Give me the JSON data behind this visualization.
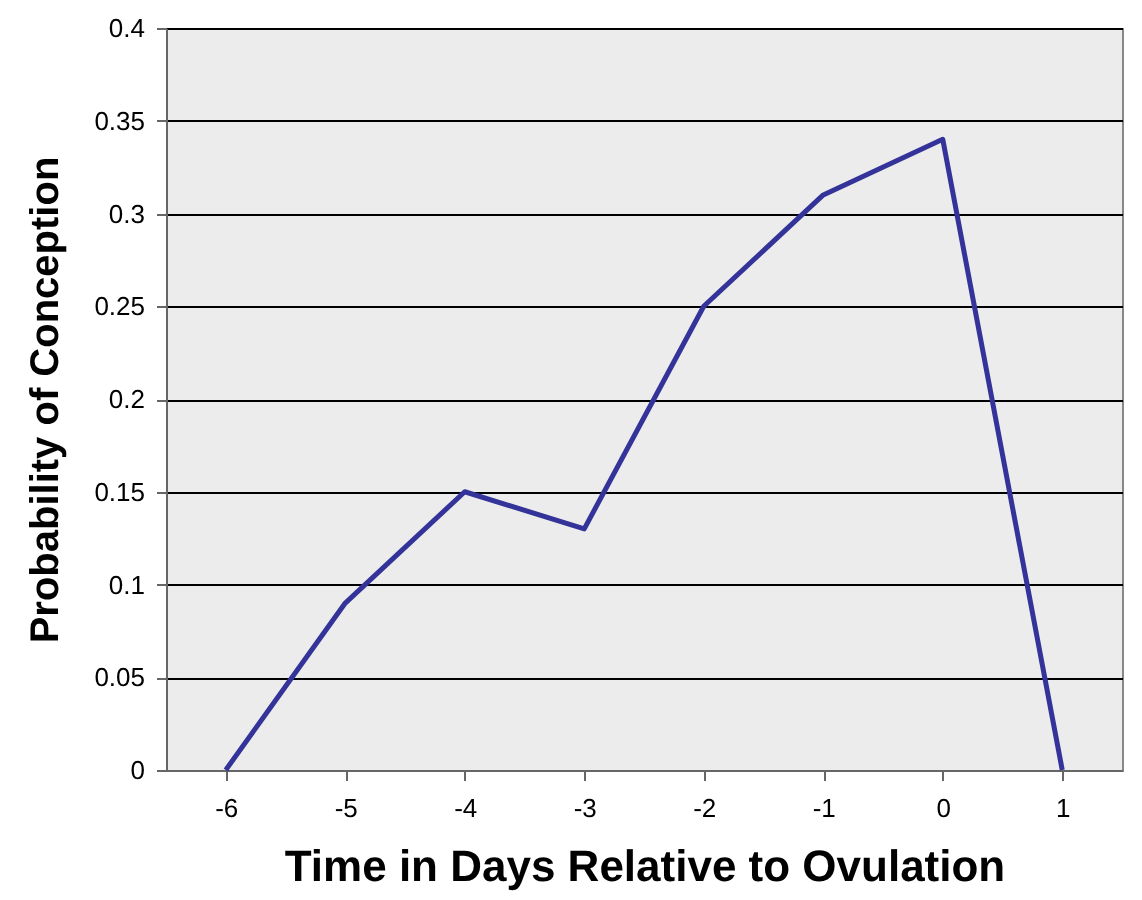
{
  "chart_data": {
    "type": "line",
    "xlabel": "Time in Days Relative to Ovulation",
    "ylabel": "Probability of  Conception",
    "categories": [
      "-6",
      "-5",
      "-4",
      "-3",
      "-2",
      "-1",
      "0",
      "1"
    ],
    "series": [
      {
        "color": "#333399",
        "values": [
          0,
          0.09,
          0.15,
          0.13,
          0.25,
          0.31,
          0.34,
          0
        ]
      }
    ],
    "ylim": [
      0,
      0.4
    ],
    "yticks": [
      0,
      0.05,
      0.1,
      0.15,
      0.2,
      0.25,
      0.3,
      0.35,
      0.4
    ],
    "grid": "y",
    "marker": "none",
    "line_style": "solid"
  }
}
